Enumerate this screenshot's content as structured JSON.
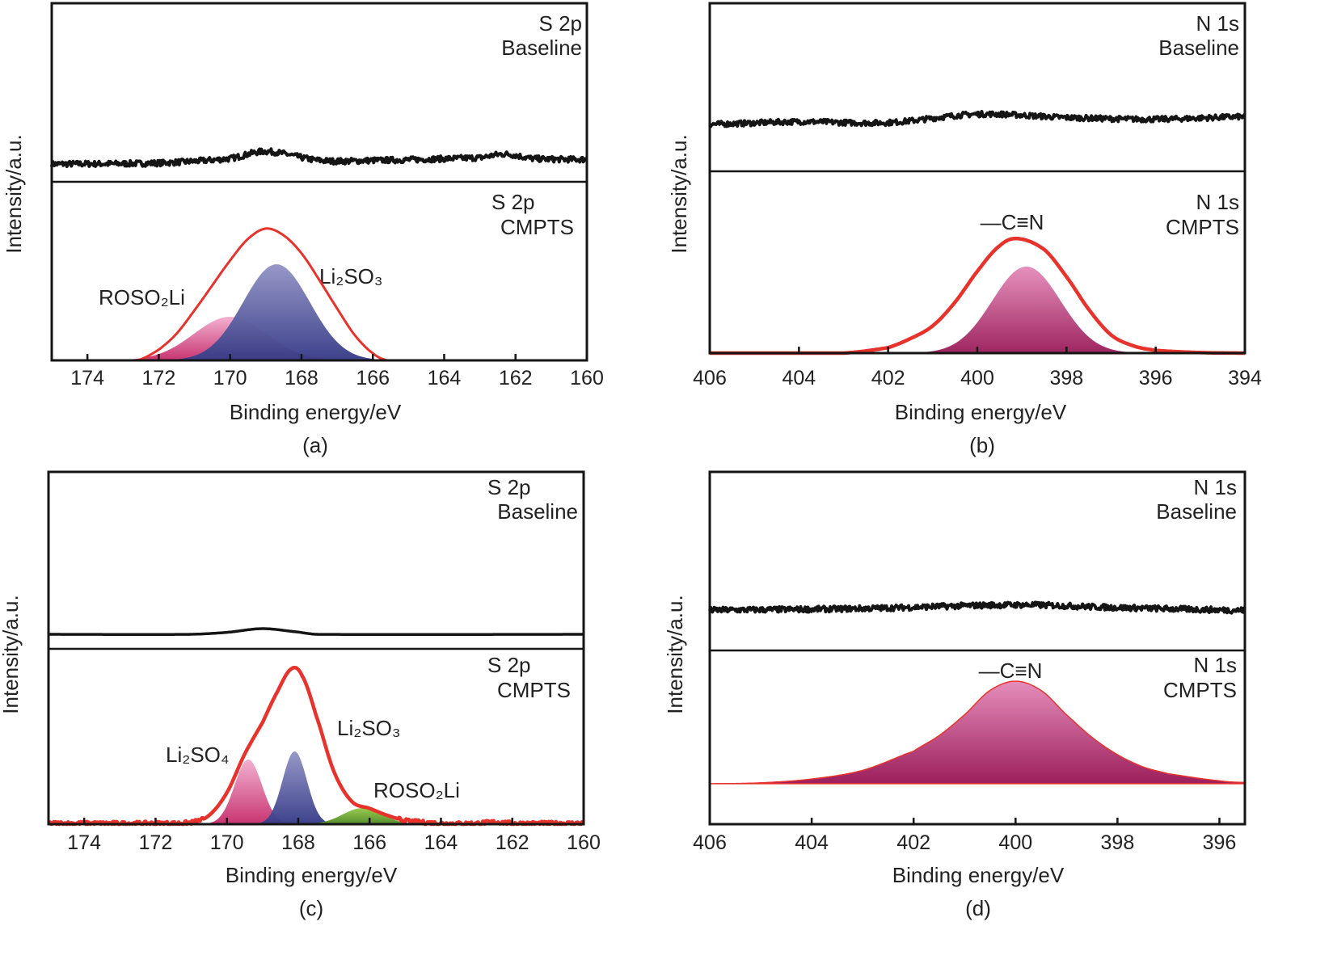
{
  "colors": {
    "envelope": "#e8322c",
    "trace": "#151515",
    "pink_top": "#f2aed0",
    "pink_bottom": "#c62f6c",
    "blue_top": "#9395c6",
    "blue_bottom": "#383c88",
    "green_top": "#96c94a",
    "green_bottom": "#4f8a24",
    "magenta_top": "#e58dbb",
    "magenta_bottom": "#9c1f5c"
  },
  "chart_data": [
    {
      "id": "a",
      "type": "line",
      "caption": "(a)",
      "xlabel": "Binding energy/eV",
      "ylabel": "Intensity/a.u.",
      "xlim": [
        175,
        160
      ],
      "xticks": [
        174,
        172,
        170,
        168,
        166,
        164,
        162,
        160
      ],
      "upper": {
        "element": "S 2p",
        "sample": "Baseline",
        "noisy": true,
        "trace": [
          [
            175,
            110
          ],
          [
            172,
            110.5
          ],
          [
            170,
            113
          ],
          [
            169,
            117
          ],
          [
            167.5,
            112
          ],
          [
            166,
            112
          ],
          [
            163,
            113.5
          ],
          [
            162.3,
            115.5
          ],
          [
            161.5,
            113
          ],
          [
            160,
            112.5
          ]
        ]
      },
      "lower": {
        "element": "S 2p",
        "sample": "CMPTS",
        "envelope": [
          [
            172.6,
            0
          ],
          [
            172,
            6
          ],
          [
            171.5,
            15
          ],
          [
            171,
            28
          ],
          [
            170.5,
            42
          ],
          [
            170,
            56
          ],
          [
            169.5,
            68
          ],
          [
            169,
            73.8
          ],
          [
            168.5,
            70
          ],
          [
            168,
            60
          ],
          [
            167.5,
            45
          ],
          [
            167,
            29
          ],
          [
            166.5,
            14
          ],
          [
            166,
            4
          ],
          [
            165.6,
            0
          ]
        ],
        "envelope_noisy": false,
        "components": [
          {
            "label": "ROSO₂Li",
            "center": 170.0,
            "height": 24.4,
            "fwhm": 2.4,
            "color": "pink"
          },
          {
            "label": "Li₂SO₃",
            "center": 168.7,
            "height": 53.8,
            "fwhm": 2.2,
            "color": "blue"
          }
        ]
      }
    },
    {
      "id": "b",
      "type": "line",
      "caption": "(b)",
      "xlabel": "Binding energy/eV",
      "ylabel": "Intensity/a.u.",
      "xlim": [
        406,
        394
      ],
      "xticks": [
        406,
        404,
        402,
        400,
        398,
        396,
        394
      ],
      "upper": {
        "element": "N 1s",
        "sample": "Baseline",
        "noisy": true,
        "trace": [
          [
            406,
            128
          ],
          [
            404,
            129.5
          ],
          [
            402,
            129
          ],
          [
            400,
            134
          ],
          [
            398,
            132
          ],
          [
            396,
            131
          ],
          [
            394,
            132.5
          ]
        ]
      },
      "lower": {
        "element": "N 1s",
        "sample": "CMPTS",
        "annotation": "—C≡N",
        "envelope": [
          [
            406,
            0
          ],
          [
            403,
            0
          ],
          [
            402,
            3
          ],
          [
            401.5,
            8
          ],
          [
            401,
            15
          ],
          [
            400.5,
            28
          ],
          [
            400,
            45
          ],
          [
            399.5,
            59
          ],
          [
            399.1,
            63
          ],
          [
            398.5,
            57
          ],
          [
            398,
            42
          ],
          [
            397.5,
            24
          ],
          [
            397,
            10
          ],
          [
            396.5,
            4
          ],
          [
            396,
            1.5
          ],
          [
            395,
            0.3
          ],
          [
            394,
            0
          ]
        ],
        "envelope_noisy": false,
        "components": [
          {
            "label": "",
            "center": 398.9,
            "height": 47.6,
            "fwhm": 1.8,
            "color": "magenta"
          }
        ]
      }
    },
    {
      "id": "c",
      "type": "line",
      "caption": "(c)",
      "xlabel": "Binding energy/eV",
      "ylabel": "Intensity/a.u.",
      "xlim": [
        175,
        160
      ],
      "xticks": [
        174,
        172,
        170,
        168,
        166,
        164,
        162,
        160
      ],
      "upper": {
        "element": "S 2p",
        "sample": "Baseline",
        "noisy": false,
        "trace": [
          [
            175,
            108.2
          ],
          [
            171,
            108.2
          ],
          [
            170,
            109.3
          ],
          [
            169,
            111.4
          ],
          [
            168,
            109.5
          ],
          [
            167.5,
            108.2
          ],
          [
            160,
            108.2
          ]
        ]
      },
      "lower": {
        "element": "S 2p",
        "sample": "CMPTS",
        "envelope": [
          [
            175,
            0.5
          ],
          [
            172,
            0.5
          ],
          [
            171,
            1
          ],
          [
            170.5,
            5
          ],
          [
            170,
            18
          ],
          [
            169.5,
            40
          ],
          [
            169,
            58
          ],
          [
            168.6,
            75
          ],
          [
            168.2,
            88.5
          ],
          [
            167.9,
            85
          ],
          [
            167.5,
            62
          ],
          [
            167,
            30
          ],
          [
            166.5,
            13
          ],
          [
            166,
            9
          ],
          [
            165.5,
            5
          ],
          [
            165,
            2
          ],
          [
            164,
            0.5
          ],
          [
            163,
            0.5
          ],
          [
            162.5,
            1.2
          ],
          [
            162,
            0.5
          ],
          [
            160,
            0.5
          ]
        ],
        "envelope_noisy": true,
        "components": [
          {
            "label": "Li₂SO₄",
            "center": 169.4,
            "height": 36.9,
            "fwhm": 0.9,
            "color": "pink"
          },
          {
            "label": "Li₂SO₃",
            "center": 168.1,
            "height": 41.5,
            "fwhm": 0.8,
            "color": "blue"
          },
          {
            "label": "ROSO₂Li",
            "center": 166.2,
            "height": 9.2,
            "fwhm": 1.3,
            "color": "green"
          }
        ]
      }
    },
    {
      "id": "d",
      "type": "line",
      "caption": "(d)",
      "xlabel": "Binding energy/eV",
      "ylabel": "Intensity/a.u.",
      "xlim": [
        406,
        395.5
      ],
      "xticks": [
        406,
        404,
        402,
        400,
        398,
        396
      ],
      "upper": {
        "element": "N 1s",
        "sample": "Baseline",
        "noisy": true,
        "trace": [
          [
            406,
            122.6
          ],
          [
            403,
            123.5
          ],
          [
            400,
            125.5
          ],
          [
            398,
            124
          ],
          [
            395.5,
            122.5
          ]
        ]
      },
      "lower": {
        "element": "N 1s",
        "sample": "CMPTS",
        "annotation": "—C≡N",
        "envelope": [],
        "filled_peak": [
          [
            406,
            23.3
          ],
          [
            405,
            23.8
          ],
          [
            404,
            26
          ],
          [
            403,
            31
          ],
          [
            402,
            42
          ],
          [
            401.5,
            51
          ],
          [
            401,
            63
          ],
          [
            400.5,
            77
          ],
          [
            400,
            82.3
          ],
          [
            399.5,
            77
          ],
          [
            399,
            63
          ],
          [
            398.5,
            50
          ],
          [
            398,
            40
          ],
          [
            397.5,
            33
          ],
          [
            397,
            29
          ],
          [
            396,
            25
          ],
          [
            395.5,
            24
          ]
        ],
        "envelope_noisy": false,
        "components": []
      }
    }
  ]
}
